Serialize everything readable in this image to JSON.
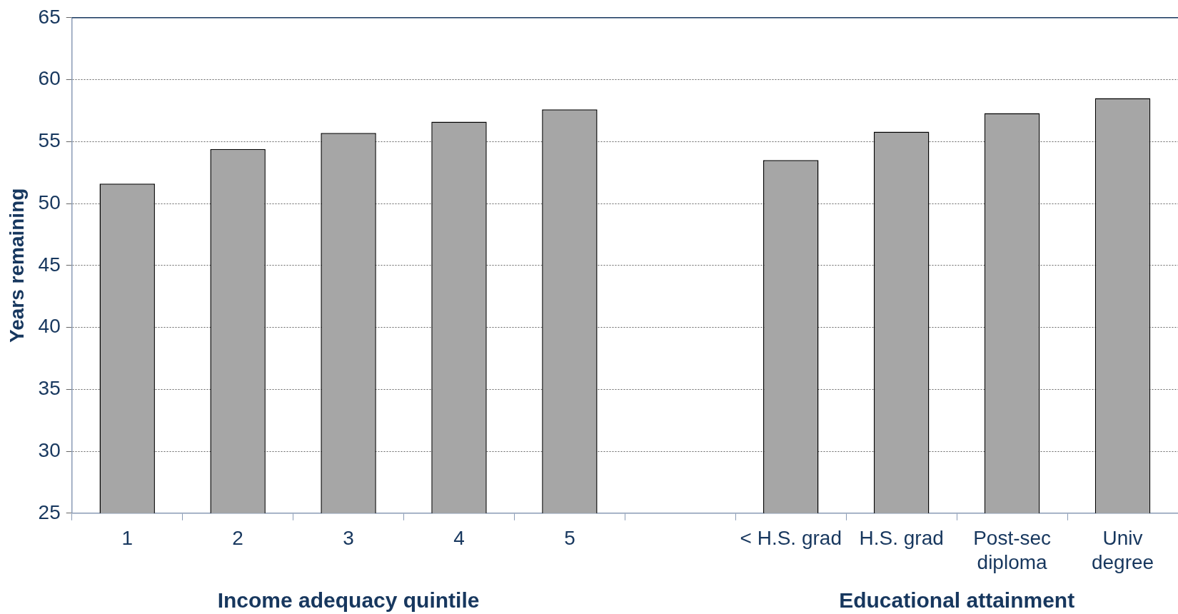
{
  "chart_data": {
    "type": "bar",
    "ylabel": "Years remaining",
    "categories": [
      "1",
      "2",
      "3",
      "4",
      "5",
      null,
      "< H.S. grad",
      "H.S. grad",
      "Post-sec diploma",
      "Univ degree"
    ],
    "values": [
      51.6,
      54.4,
      55.7,
      56.6,
      57.6,
      null,
      53.5,
      55.8,
      57.3,
      58.5
    ],
    "color": "#a6a6a6",
    "ylim": [
      25,
      65
    ],
    "yticks": [
      25,
      30,
      35,
      40,
      45,
      50,
      55,
      60,
      65
    ],
    "grid": "y",
    "legend": false,
    "annotations": [
      "Income adequacy quintile",
      "Educational attainment"
    ]
  }
}
